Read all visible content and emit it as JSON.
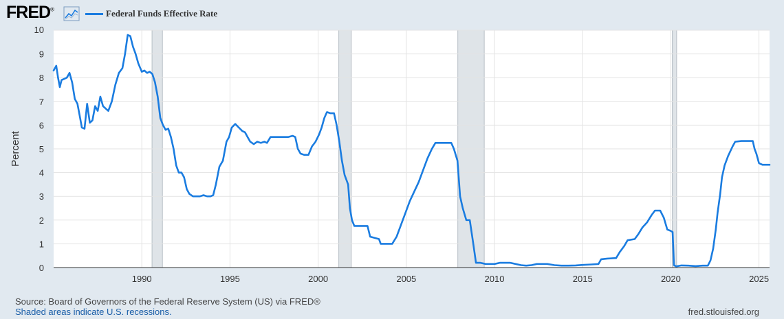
{
  "header": {
    "logo_text": "FRED",
    "logo_mark": "®",
    "logo_icon": "chart-line-icon"
  },
  "chart_data": {
    "type": "line",
    "ylabel": "Percent",
    "xlabel": "",
    "ylim": [
      0,
      10
    ],
    "xlim": [
      1985.0,
      2025.6
    ],
    "yticks": [
      0,
      1,
      2,
      3,
      4,
      5,
      6,
      7,
      8,
      9,
      10
    ],
    "xticks": [
      1990,
      1995,
      2000,
      2005,
      2010,
      2015,
      2020,
      2025
    ],
    "grid": true,
    "legend_position": "top-left",
    "series_color": "#1a7ce0",
    "recession_color": "#dfe4e8",
    "recessions": [
      [
        1990.58,
        1991.17
      ],
      [
        2001.17,
        2001.88
      ],
      [
        2007.92,
        2009.42
      ],
      [
        2020.08,
        2020.33
      ]
    ],
    "series": [
      {
        "name": "Federal Funds Effective Rate",
        "points": [
          [
            1985.0,
            8.3
          ],
          [
            1985.15,
            8.5
          ],
          [
            1985.25,
            8.0
          ],
          [
            1985.35,
            7.6
          ],
          [
            1985.45,
            7.9
          ],
          [
            1985.6,
            7.95
          ],
          [
            1985.75,
            8.0
          ],
          [
            1985.9,
            8.2
          ],
          [
            1986.05,
            7.8
          ],
          [
            1986.2,
            7.1
          ],
          [
            1986.35,
            6.9
          ],
          [
            1986.5,
            6.3
          ],
          [
            1986.6,
            5.9
          ],
          [
            1986.75,
            5.85
          ],
          [
            1986.9,
            6.9
          ],
          [
            1987.05,
            6.1
          ],
          [
            1987.2,
            6.2
          ],
          [
            1987.35,
            6.8
          ],
          [
            1987.5,
            6.6
          ],
          [
            1987.65,
            7.2
          ],
          [
            1987.8,
            6.8
          ],
          [
            1987.95,
            6.7
          ],
          [
            1988.1,
            6.6
          ],
          [
            1988.3,
            7.0
          ],
          [
            1988.5,
            7.7
          ],
          [
            1988.7,
            8.2
          ],
          [
            1988.9,
            8.4
          ],
          [
            1989.05,
            9.0
          ],
          [
            1989.2,
            9.8
          ],
          [
            1989.35,
            9.75
          ],
          [
            1989.5,
            9.3
          ],
          [
            1989.65,
            9.0
          ],
          [
            1989.8,
            8.6
          ],
          [
            1990.0,
            8.25
          ],
          [
            1990.15,
            8.3
          ],
          [
            1990.3,
            8.2
          ],
          [
            1990.45,
            8.25
          ],
          [
            1990.6,
            8.15
          ],
          [
            1990.75,
            7.8
          ],
          [
            1990.9,
            7.2
          ],
          [
            1991.05,
            6.3
          ],
          [
            1991.2,
            6.0
          ],
          [
            1991.35,
            5.8
          ],
          [
            1991.5,
            5.85
          ],
          [
            1991.65,
            5.5
          ],
          [
            1991.8,
            5.0
          ],
          [
            1991.95,
            4.3
          ],
          [
            1992.1,
            4.0
          ],
          [
            1992.25,
            4.0
          ],
          [
            1992.4,
            3.8
          ],
          [
            1992.55,
            3.3
          ],
          [
            1992.7,
            3.1
          ],
          [
            1992.9,
            3.0
          ],
          [
            1993.1,
            3.0
          ],
          [
            1993.3,
            3.0
          ],
          [
            1993.5,
            3.05
          ],
          [
            1993.7,
            3.0
          ],
          [
            1993.9,
            3.0
          ],
          [
            1994.05,
            3.05
          ],
          [
            1994.2,
            3.5
          ],
          [
            1994.4,
            4.25
          ],
          [
            1994.6,
            4.5
          ],
          [
            1994.8,
            5.3
          ],
          [
            1994.95,
            5.5
          ],
          [
            1995.1,
            5.9
          ],
          [
            1995.3,
            6.05
          ],
          [
            1995.5,
            5.9
          ],
          [
            1995.7,
            5.75
          ],
          [
            1995.85,
            5.7
          ],
          [
            1996.0,
            5.5
          ],
          [
            1996.15,
            5.3
          ],
          [
            1996.35,
            5.2
          ],
          [
            1996.55,
            5.3
          ],
          [
            1996.75,
            5.25
          ],
          [
            1996.95,
            5.3
          ],
          [
            1997.1,
            5.25
          ],
          [
            1997.3,
            5.5
          ],
          [
            1997.55,
            5.5
          ],
          [
            1997.8,
            5.5
          ],
          [
            1998.05,
            5.5
          ],
          [
            1998.3,
            5.5
          ],
          [
            1998.55,
            5.55
          ],
          [
            1998.7,
            5.5
          ],
          [
            1998.85,
            5.0
          ],
          [
            1999.0,
            4.8
          ],
          [
            1999.2,
            4.75
          ],
          [
            1999.45,
            4.75
          ],
          [
            1999.65,
            5.1
          ],
          [
            1999.85,
            5.3
          ],
          [
            2000.05,
            5.6
          ],
          [
            2000.2,
            5.9
          ],
          [
            2000.35,
            6.3
          ],
          [
            2000.5,
            6.55
          ],
          [
            2000.7,
            6.5
          ],
          [
            2000.9,
            6.5
          ],
          [
            2001.05,
            6.0
          ],
          [
            2001.2,
            5.3
          ],
          [
            2001.35,
            4.5
          ],
          [
            2001.5,
            3.9
          ],
          [
            2001.7,
            3.5
          ],
          [
            2001.8,
            2.5
          ],
          [
            2001.92,
            2.0
          ],
          [
            2002.05,
            1.75
          ],
          [
            2002.4,
            1.75
          ],
          [
            2002.8,
            1.75
          ],
          [
            2002.95,
            1.3
          ],
          [
            2003.2,
            1.25
          ],
          [
            2003.45,
            1.2
          ],
          [
            2003.55,
            1.0
          ],
          [
            2003.9,
            1.0
          ],
          [
            2004.2,
            1.0
          ],
          [
            2004.45,
            1.3
          ],
          [
            2004.7,
            1.8
          ],
          [
            2004.95,
            2.3
          ],
          [
            2005.2,
            2.8
          ],
          [
            2005.45,
            3.2
          ],
          [
            2005.7,
            3.6
          ],
          [
            2005.95,
            4.1
          ],
          [
            2006.2,
            4.6
          ],
          [
            2006.45,
            5.0
          ],
          [
            2006.65,
            5.25
          ],
          [
            2007.0,
            5.25
          ],
          [
            2007.35,
            5.25
          ],
          [
            2007.55,
            5.25
          ],
          [
            2007.7,
            5.0
          ],
          [
            2007.9,
            4.5
          ],
          [
            2008.05,
            3.0
          ],
          [
            2008.2,
            2.5
          ],
          [
            2008.4,
            2.0
          ],
          [
            2008.6,
            2.0
          ],
          [
            2008.8,
            1.0
          ],
          [
            2008.95,
            0.2
          ],
          [
            2009.2,
            0.2
          ],
          [
            2009.5,
            0.15
          ],
          [
            2009.8,
            0.15
          ],
          [
            2010.0,
            0.15
          ],
          [
            2010.3,
            0.2
          ],
          [
            2010.6,
            0.2
          ],
          [
            2010.9,
            0.2
          ],
          [
            2011.2,
            0.15
          ],
          [
            2011.5,
            0.1
          ],
          [
            2011.8,
            0.08
          ],
          [
            2012.1,
            0.1
          ],
          [
            2012.4,
            0.15
          ],
          [
            2012.7,
            0.15
          ],
          [
            2013.0,
            0.15
          ],
          [
            2013.4,
            0.1
          ],
          [
            2013.8,
            0.08
          ],
          [
            2014.2,
            0.08
          ],
          [
            2014.6,
            0.09
          ],
          [
            2015.0,
            0.11
          ],
          [
            2015.5,
            0.13
          ],
          [
            2015.9,
            0.15
          ],
          [
            2016.05,
            0.35
          ],
          [
            2016.4,
            0.38
          ],
          [
            2016.9,
            0.4
          ],
          [
            2017.1,
            0.65
          ],
          [
            2017.35,
            0.9
          ],
          [
            2017.55,
            1.15
          ],
          [
            2017.95,
            1.2
          ],
          [
            2018.15,
            1.4
          ],
          [
            2018.4,
            1.7
          ],
          [
            2018.65,
            1.9
          ],
          [
            2018.9,
            2.2
          ],
          [
            2019.1,
            2.4
          ],
          [
            2019.4,
            2.4
          ],
          [
            2019.6,
            2.1
          ],
          [
            2019.8,
            1.6
          ],
          [
            2019.98,
            1.55
          ],
          [
            2020.1,
            1.5
          ],
          [
            2020.18,
            0.1
          ],
          [
            2020.3,
            0.05
          ],
          [
            2020.6,
            0.09
          ],
          [
            2021.0,
            0.08
          ],
          [
            2021.4,
            0.06
          ],
          [
            2021.8,
            0.08
          ],
          [
            2022.1,
            0.08
          ],
          [
            2022.25,
            0.3
          ],
          [
            2022.4,
            0.8
          ],
          [
            2022.55,
            1.6
          ],
          [
            2022.65,
            2.3
          ],
          [
            2022.8,
            3.1
          ],
          [
            2022.9,
            3.8
          ],
          [
            2023.05,
            4.3
          ],
          [
            2023.25,
            4.7
          ],
          [
            2023.5,
            5.1
          ],
          [
            2023.65,
            5.3
          ],
          [
            2024.0,
            5.33
          ],
          [
            2024.4,
            5.33
          ],
          [
            2024.65,
            5.33
          ],
          [
            2024.75,
            5.0
          ],
          [
            2024.85,
            4.8
          ],
          [
            2025.0,
            4.4
          ],
          [
            2025.2,
            4.33
          ],
          [
            2025.6,
            4.33
          ]
        ]
      }
    ]
  },
  "footer": {
    "source": "Source: Board of Governors of the Federal Reserve System (US) via FRED®",
    "recession_note": "Shaded areas indicate U.S. recessions.",
    "url": "fred.stlouisfed.org"
  }
}
